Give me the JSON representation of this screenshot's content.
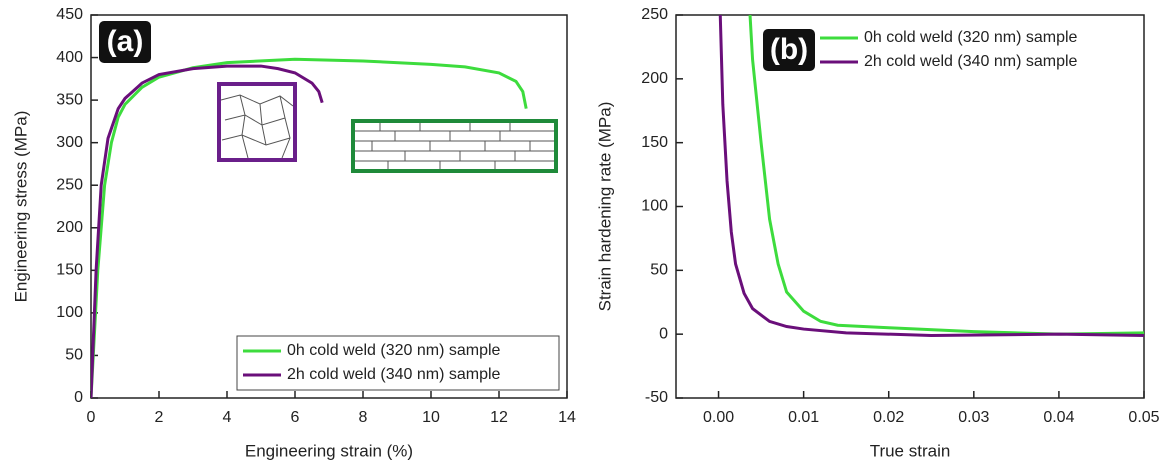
{
  "chart_data": [
    {
      "type": "line",
      "panel_label": "(a)",
      "x_label": "Engineering strain (%)",
      "y_label": "Engineering stress (MPa)",
      "xlim": [
        0,
        14
      ],
      "xticks": [
        0,
        2,
        4,
        6,
        8,
        10,
        12,
        14
      ],
      "ylim": [
        0,
        450
      ],
      "yticks": [
        0,
        50,
        100,
        150,
        200,
        250,
        300,
        350,
        400,
        450
      ],
      "legend": "lower right",
      "legend_frame": true,
      "series": [
        {
          "name": "0h cold weld (320 nm) sample",
          "color": "#3ddc3d",
          "x": [
            0,
            0.2,
            0.4,
            0.6,
            0.8,
            1,
            1.5,
            2,
            3,
            4,
            6,
            8,
            10,
            11,
            12,
            12.5,
            12.7,
            12.8
          ],
          "values": [
            0,
            150,
            250,
            300,
            330,
            345,
            365,
            377,
            388,
            394,
            398,
            396,
            392,
            389,
            382,
            372,
            360,
            340
          ]
        },
        {
          "name": "2h cold weld (340 nm) sample",
          "color": "#6a0f7a",
          "x": [
            0,
            0.15,
            0.3,
            0.5,
            0.8,
            1,
            1.5,
            2,
            3,
            4,
            5,
            5.5,
            6,
            6.5,
            6.7,
            6.8
          ],
          "values": [
            0,
            150,
            250,
            305,
            340,
            352,
            370,
            380,
            387,
            390,
            390,
            387,
            382,
            370,
            360,
            347
          ]
        }
      ]
    },
    {
      "type": "line",
      "panel_label": "(b)",
      "x_label": "True strain",
      "y_label": "Strain hardening rate (MPa)",
      "xlim": [
        -0.005,
        0.05
      ],
      "xticks": [
        {
          "value": 0,
          "label": "0.00"
        },
        0.01,
        0.02,
        0.03,
        0.04,
        0.05
      ],
      "ylim": [
        -50,
        250
      ],
      "yticks": [
        -50,
        0,
        50,
        100,
        150,
        200,
        250
      ],
      "legend": "upper right",
      "legend_frame": false,
      "series": [
        {
          "name": "0h cold weld (320 nm) sample",
          "color": "#3ddc3d",
          "x": [
            0.0037,
            0.004,
            0.005,
            0.006,
            0.007,
            0.008,
            0.01,
            0.012,
            0.014,
            0.02,
            0.03,
            0.04,
            0.05
          ],
          "values": [
            250,
            215,
            150,
            90,
            55,
            33,
            18,
            10,
            7,
            5,
            2,
            0,
            1
          ]
        },
        {
          "name": "2h cold weld (340 nm) sample",
          "color": "#6a0f7a",
          "x": [
            0.0002,
            0.0005,
            0.001,
            0.0015,
            0.002,
            0.003,
            0.004,
            0.006,
            0.008,
            0.01,
            0.015,
            0.025,
            0.04,
            0.05
          ],
          "values": [
            250,
            180,
            120,
            80,
            55,
            32,
            20,
            10,
            6,
            4,
            1,
            -1,
            0,
            -1
          ]
        }
      ]
    }
  ]
}
